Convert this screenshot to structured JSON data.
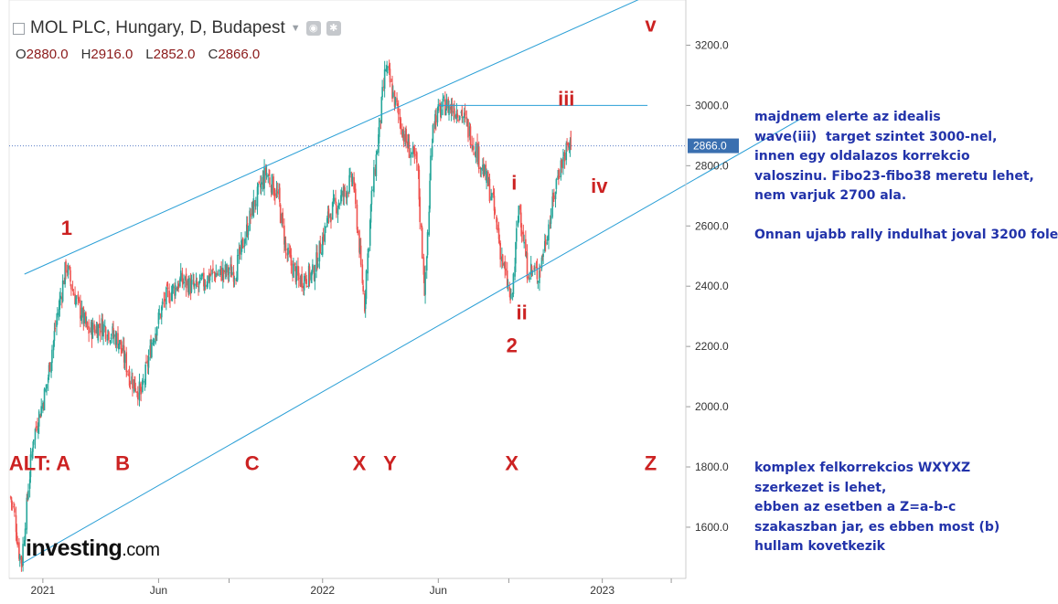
{
  "header": {
    "title": "MOL PLC, Hungary, D, Budapest",
    "ohlc": {
      "o_label": "O",
      "o": "2880.0",
      "h_label": "H",
      "h": "2916.0",
      "l_label": "L",
      "l": "2852.0",
      "c_label": "C",
      "c": "2866.0"
    }
  },
  "chart_data": {
    "type": "candlestick",
    "y_ticks": [
      "3200.0",
      "3000.0",
      "2800.0",
      "2600.0",
      "2400.0",
      "2200.0",
      "2000.0",
      "1800.0",
      "1600.0"
    ],
    "y_tick_values": [
      3200,
      3000,
      2800,
      2600,
      2400,
      2200,
      2000,
      1800,
      1600
    ],
    "x_ticks": [
      "2021",
      "Jun",
      "2022",
      "Jun",
      "2023"
    ],
    "ylim": [
      1430,
      3350
    ],
    "last_price_label": "2866.0",
    "last_price": 2866,
    "series_path": [
      [
        "2020-11-20",
        1700
      ],
      [
        "2020-11-25",
        1650
      ],
      [
        "2020-12-01",
        1520
      ],
      [
        "2020-12-05",
        1480
      ],
      [
        "2020-12-10",
        1640
      ],
      [
        "2020-12-20",
        1900
      ],
      [
        "2021-01-05",
        2050
      ],
      [
        "2021-01-20",
        2300
      ],
      [
        "2021-02-01",
        2470
      ],
      [
        "2021-02-10",
        2380
      ],
      [
        "2021-03-01",
        2250
      ],
      [
        "2021-03-20",
        2270
      ],
      [
        "2021-04-10",
        2220
      ],
      [
        "2021-04-25",
        2100
      ],
      [
        "2021-05-10",
        2040
      ],
      [
        "2021-05-25",
        2230
      ],
      [
        "2021-06-10",
        2360
      ],
      [
        "2021-07-01",
        2420
      ],
      [
        "2021-07-20",
        2390
      ],
      [
        "2021-08-10",
        2440
      ],
      [
        "2021-09-10",
        2450
      ],
      [
        "2021-10-01",
        2650
      ],
      [
        "2021-10-20",
        2780
      ],
      [
        "2021-11-05",
        2690
      ],
      [
        "2021-11-15",
        2510
      ],
      [
        "2021-12-01",
        2420
      ],
      [
        "2021-12-20",
        2440
      ],
      [
        "2022-01-10",
        2640
      ],
      [
        "2022-01-25",
        2690
      ],
      [
        "2022-02-10",
        2760
      ],
      [
        "2022-02-25",
        2340
      ],
      [
        "2022-03-05",
        2650
      ],
      [
        "2022-03-15",
        2890
      ],
      [
        "2022-03-25",
        3130
      ],
      [
        "2022-04-05",
        3020
      ],
      [
        "2022-04-20",
        2880
      ],
      [
        "2022-05-05",
        2800
      ],
      [
        "2022-05-15",
        2370
      ],
      [
        "2022-05-25",
        2950
      ],
      [
        "2022-06-10",
        3000
      ],
      [
        "2022-07-01",
        2980
      ],
      [
        "2022-07-20",
        2860
      ],
      [
        "2022-08-10",
        2700
      ],
      [
        "2022-08-25",
        2470
      ],
      [
        "2022-09-05",
        2340
      ],
      [
        "2022-09-15",
        2680
      ],
      [
        "2022-09-25",
        2460
      ],
      [
        "2022-10-10",
        2440
      ],
      [
        "2022-10-25",
        2620
      ],
      [
        "2022-11-05",
        2780
      ],
      [
        "2022-11-15",
        2850
      ],
      [
        "2022-11-21",
        2866
      ]
    ],
    "channel": {
      "upper": [
        [
          "2020-12-08",
          2440
        ],
        [
          "2023-02-25",
          3360
        ]
      ],
      "lower": [
        [
          "2020-12-05",
          1480
        ],
        [
          "2023-03-25",
          2700
        ]
      ]
    },
    "resistance": {
      "from": "2022-06-01",
      "to": "2023-03-01",
      "y": 3000
    },
    "annotations": [
      {
        "label": "1",
        "date": "2021-02-01",
        "y": 2570
      },
      {
        "label": "2",
        "date": "2022-09-05",
        "y": 2180
      },
      {
        "label": "i",
        "date": "2022-09-08",
        "y": 2720
      },
      {
        "label": "ii",
        "date": "2022-09-18",
        "y": 2290
      },
      {
        "label": "iii",
        "date": "2022-11-15",
        "y": 3000
      },
      {
        "label": "iv",
        "date": "2022-12-28",
        "y": 2710
      },
      {
        "label": "v",
        "date": "2023-03-05",
        "y": 3245
      },
      {
        "label": "ALT: A",
        "date": "2020-12-28",
        "y": 1790
      },
      {
        "label": "B",
        "date": "2021-04-15",
        "y": 1790
      },
      {
        "label": "C",
        "date": "2021-10-01",
        "y": 1790
      },
      {
        "label": "X",
        "date": "2022-02-18",
        "y": 1790
      },
      {
        "label": "Y",
        "date": "2022-03-30",
        "y": 1790
      },
      {
        "label": "X",
        "date": "2022-09-05",
        "y": 1790
      },
      {
        "label": "Z",
        "date": "2023-03-05",
        "y": 1790
      }
    ]
  },
  "comments": {
    "top": "majdnem elerte az idealis\nwave(iii)  target szintet 3000-nel,\ninnen egy oldalazos korrekcio\nvaloszinu. Fibo23-fibo38 meretu lehet,\nnem varjuk 2700 ala.\n\nOnnan ujabb rally indulhat joval 3200 fole",
    "bottom": "komplex felkorrekcios WXYXZ\nszerkezet is lehet,\nebben az esetben a Z=a-b-c\nszakaszban jar, es ebben most (b)\nhullam kovetkezik"
  },
  "logo": {
    "main": "investing",
    "suffix": ".com"
  },
  "colors": {
    "up": "#26a69a",
    "down": "#ef5350",
    "channel": "#2a9fd6",
    "label": "#cc2222",
    "price_tag": "#3a6fb0"
  }
}
